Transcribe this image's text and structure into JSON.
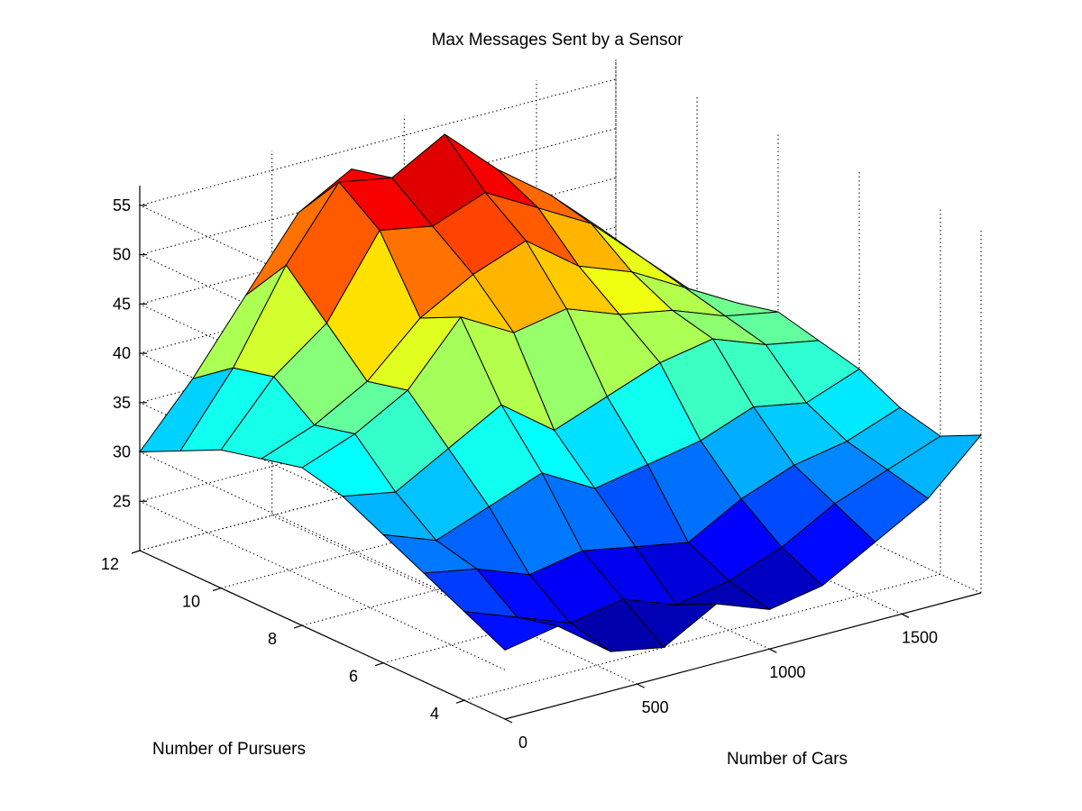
{
  "chart_data": {
    "type": "surface",
    "title": "Max Messages Sent by a Sensor",
    "xlabel": "Number of Cars",
    "ylabel": "Number of Pursuers",
    "zlabel": "",
    "xlim": [
      0,
      1800
    ],
    "ylim": [
      3,
      12
    ],
    "zlim": [
      20,
      57
    ],
    "x_ticks": [
      0,
      500,
      1000,
      1500
    ],
    "y_ticks": [
      4,
      6,
      8,
      10,
      12
    ],
    "z_ticks": [
      25,
      30,
      35,
      40,
      45,
      50,
      55
    ],
    "grid": true,
    "colormap": "jet",
    "x": [
      0,
      200,
      400,
      600,
      800,
      1000,
      1200,
      1400,
      1600,
      1800
    ],
    "y": [
      3,
      4,
      5,
      6,
      7,
      8,
      9,
      10,
      11,
      12
    ],
    "z": [
      [
        27,
        28,
        24,
        23,
        26,
        24,
        25,
        28,
        31,
        36
      ],
      [
        29,
        27,
        25,
        26,
        24,
        25,
        27,
        30,
        32,
        34
      ],
      [
        31,
        30,
        28,
        29,
        28,
        27,
        30,
        32,
        33,
        35
      ],
      [
        33,
        31,
        33,
        35,
        32,
        33,
        34,
        36,
        35,
        37
      ],
      [
        35,
        34,
        37,
        40,
        36,
        38,
        40,
        41,
        39,
        38
      ],
      [
        36,
        38,
        41,
        47,
        44,
        45,
        43,
        42,
        40,
        39
      ],
      [
        35,
        37,
        40,
        45,
        48,
        50,
        46,
        44,
        41,
        38
      ],
      [
        34,
        40,
        44,
        52,
        51,
        53,
        50,
        47,
        42,
        37
      ],
      [
        32,
        39,
        48,
        55,
        54,
        57,
        52,
        48,
        43,
        36
      ],
      [
        30,
        36,
        43,
        50,
        53,
        49,
        47,
        45,
        42,
        35
      ]
    ]
  },
  "labels": {
    "title": "Max Messages Sent by a Sensor",
    "xlabel": "Number of Cars",
    "ylabel": "Number of Pursuers"
  }
}
